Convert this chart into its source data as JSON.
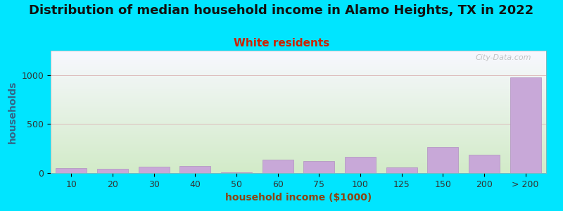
{
  "categories": [
    "10",
    "20",
    "30",
    "40",
    "50",
    "60",
    "75",
    "100",
    "125",
    "150",
    "200",
    "> 200"
  ],
  "values": [
    50,
    45,
    65,
    75,
    10,
    135,
    120,
    165,
    55,
    265,
    185,
    975
  ],
  "bar_color": "#c8a8d8",
  "bar_edge_color": "#b090c0",
  "background_outer": "#00e5ff",
  "background_inner_top": "#f8f8ff",
  "background_inner_bottom": "#ddeedd",
  "title": "Distribution of median household income in Alamo Heights, TX in 2022",
  "subtitle": "White residents",
  "subtitle_color": "#cc2200",
  "xlabel": "household income ($1000)",
  "ylabel": "households",
  "ylabel_color": "#336688",
  "xlabel_color": "#8B4513",
  "title_fontsize": 13,
  "subtitle_fontsize": 11,
  "label_fontsize": 10,
  "tick_fontsize": 9,
  "ylim": [
    0,
    1250
  ],
  "yticks": [
    0,
    500,
    1000
  ],
  "grid_color": "#ddbbbb",
  "watermark_text": "City-Data.com"
}
